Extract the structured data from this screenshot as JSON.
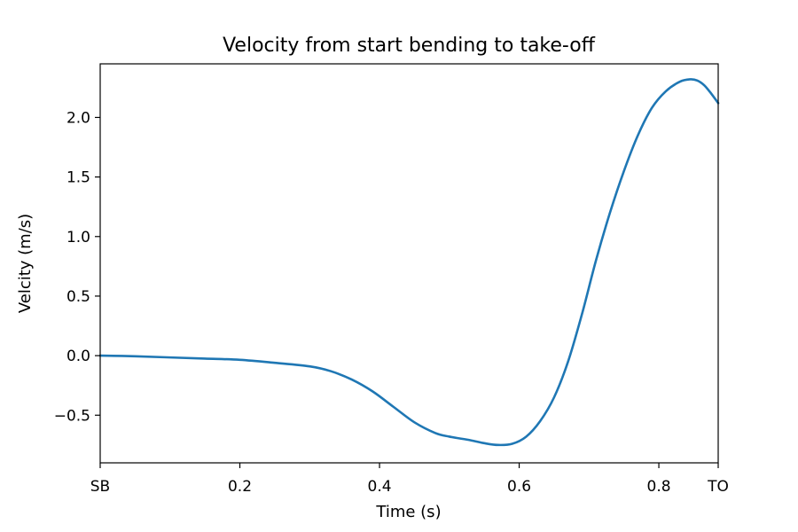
{
  "chart_data": {
    "type": "line",
    "title": "Velocity from start bending to take-off",
    "xlabel": "Time (s)",
    "ylabel": "Velcity (m/s)",
    "xlim": [
      0.0,
      0.885
    ],
    "ylim": [
      -0.9,
      2.45
    ],
    "x_ticks": [
      {
        "value": 0.0,
        "label": "SB"
      },
      {
        "value": 0.2,
        "label": "0.2"
      },
      {
        "value": 0.4,
        "label": "0.4"
      },
      {
        "value": 0.6,
        "label": "0.6"
      },
      {
        "value": 0.8,
        "label": "0.8"
      },
      {
        "value": 0.885,
        "label": "TO"
      }
    ],
    "y_ticks": [
      {
        "value": -0.5,
        "label": "−0.5"
      },
      {
        "value": 0.0,
        "label": "0.0"
      },
      {
        "value": 0.5,
        "label": "0.5"
      },
      {
        "value": 1.0,
        "label": "1.0"
      },
      {
        "value": 1.5,
        "label": "1.5"
      },
      {
        "value": 2.0,
        "label": "2.0"
      }
    ],
    "grid": false,
    "series": [
      {
        "color": "#1f77b4",
        "x": [
          0.0,
          0.05,
          0.1,
          0.15,
          0.2,
          0.25,
          0.3,
          0.33,
          0.36,
          0.39,
          0.42,
          0.45,
          0.48,
          0.5,
          0.53,
          0.55,
          0.57,
          0.59,
          0.61,
          0.63,
          0.65,
          0.67,
          0.69,
          0.71,
          0.73,
          0.75,
          0.77,
          0.79,
          0.81,
          0.83,
          0.845,
          0.855,
          0.865,
          0.875,
          0.885
        ],
        "y": [
          0.0,
          -0.005,
          -0.015,
          -0.025,
          -0.035,
          -0.06,
          -0.09,
          -0.13,
          -0.2,
          -0.3,
          -0.43,
          -0.56,
          -0.65,
          -0.68,
          -0.71,
          -0.735,
          -0.75,
          -0.74,
          -0.68,
          -0.55,
          -0.35,
          -0.05,
          0.35,
          0.8,
          1.2,
          1.55,
          1.85,
          2.08,
          2.22,
          2.3,
          2.32,
          2.31,
          2.27,
          2.2,
          2.12
        ]
      }
    ]
  }
}
